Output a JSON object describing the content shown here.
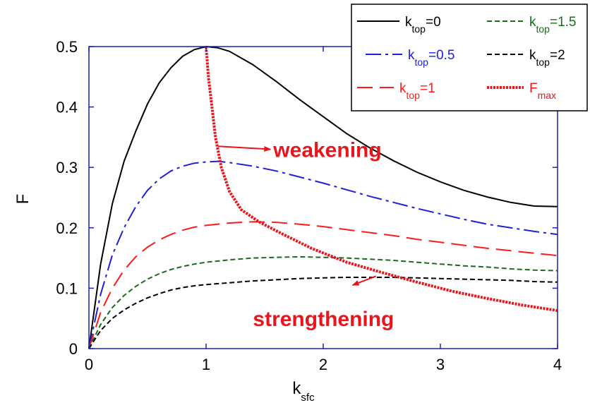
{
  "chart_data": {
    "type": "line",
    "xlabel": "k",
    "xlabel_sub": "sfc",
    "ylabel": "F",
    "xlim": [
      0,
      4
    ],
    "ylim": [
      0,
      0.5
    ],
    "x_ticks": [
      "0",
      "1",
      "2",
      "3",
      "4"
    ],
    "y_ticks": [
      "0",
      "0.1",
      "0.2",
      "0.3",
      "0.4",
      "0.5"
    ],
    "grid": false,
    "legend_position": "top-right",
    "series": [
      {
        "name": "k",
        "name_sub": "top",
        "name_suffix": "=0",
        "color": "#000000",
        "dash": "solid",
        "width": 2,
        "points": [
          [
            0,
            0
          ],
          [
            0.1,
            0.14
          ],
          [
            0.2,
            0.24
          ],
          [
            0.3,
            0.31
          ],
          [
            0.4,
            0.36
          ],
          [
            0.5,
            0.405
          ],
          [
            0.6,
            0.44
          ],
          [
            0.7,
            0.465
          ],
          [
            0.8,
            0.484
          ],
          [
            0.9,
            0.495
          ],
          [
            1.0,
            0.5
          ],
          [
            1.1,
            0.498
          ],
          [
            1.2,
            0.492
          ],
          [
            1.4,
            0.47
          ],
          [
            1.6,
            0.442
          ],
          [
            1.8,
            0.412
          ],
          [
            2.0,
            0.384
          ],
          [
            2.2,
            0.356
          ],
          [
            2.4,
            0.332
          ],
          [
            2.6,
            0.311
          ],
          [
            2.8,
            0.292
          ],
          [
            3.0,
            0.276
          ],
          [
            3.2,
            0.262
          ],
          [
            3.4,
            0.251
          ],
          [
            3.6,
            0.242
          ],
          [
            3.8,
            0.236
          ],
          [
            4.0,
            0.235
          ]
        ]
      },
      {
        "name": "k",
        "name_sub": "top",
        "name_suffix": "=0.5",
        "color": "#1f1fd6",
        "dash": "long-dash-dot",
        "width": 2,
        "points": [
          [
            0,
            0
          ],
          [
            0.1,
            0.09
          ],
          [
            0.2,
            0.155
          ],
          [
            0.3,
            0.2
          ],
          [
            0.4,
            0.235
          ],
          [
            0.5,
            0.262
          ],
          [
            0.6,
            0.281
          ],
          [
            0.7,
            0.294
          ],
          [
            0.8,
            0.302
          ],
          [
            0.9,
            0.307
          ],
          [
            1.0,
            0.309
          ],
          [
            1.1,
            0.31
          ],
          [
            1.2,
            0.308
          ],
          [
            1.4,
            0.302
          ],
          [
            1.6,
            0.294
          ],
          [
            1.8,
            0.284
          ],
          [
            2.0,
            0.274
          ],
          [
            2.2,
            0.263
          ],
          [
            2.4,
            0.252
          ],
          [
            2.6,
            0.242
          ],
          [
            2.8,
            0.232
          ],
          [
            3.0,
            0.223
          ],
          [
            3.2,
            0.214
          ],
          [
            3.4,
            0.206
          ],
          [
            3.6,
            0.2
          ],
          [
            3.8,
            0.194
          ],
          [
            4.0,
            0.189
          ]
        ]
      },
      {
        "name": "k",
        "name_sub": "top",
        "name_suffix": "=1",
        "color": "#ff1a1a",
        "dash": "long-dash",
        "width": 2,
        "points": [
          [
            0,
            0
          ],
          [
            0.1,
            0.06
          ],
          [
            0.2,
            0.1
          ],
          [
            0.3,
            0.13
          ],
          [
            0.4,
            0.152
          ],
          [
            0.5,
            0.168
          ],
          [
            0.6,
            0.18
          ],
          [
            0.7,
            0.189
          ],
          [
            0.8,
            0.196
          ],
          [
            0.9,
            0.201
          ],
          [
            1.0,
            0.204
          ],
          [
            1.2,
            0.208
          ],
          [
            1.4,
            0.21
          ],
          [
            1.6,
            0.209
          ],
          [
            1.8,
            0.206
          ],
          [
            2.0,
            0.202
          ],
          [
            2.2,
            0.197
          ],
          [
            2.4,
            0.192
          ],
          [
            2.6,
            0.187
          ],
          [
            2.8,
            0.181
          ],
          [
            3.0,
            0.176
          ],
          [
            3.2,
            0.171
          ],
          [
            3.4,
            0.166
          ],
          [
            3.6,
            0.162
          ],
          [
            3.8,
            0.158
          ],
          [
            4.0,
            0.154
          ]
        ]
      },
      {
        "name": "k",
        "name_sub": "top",
        "name_suffix": "=1.5",
        "color": "#1a6b1a",
        "dash": "short-dash",
        "width": 2,
        "points": [
          [
            0,
            0
          ],
          [
            0.1,
            0.04
          ],
          [
            0.2,
            0.068
          ],
          [
            0.3,
            0.088
          ],
          [
            0.4,
            0.103
          ],
          [
            0.5,
            0.115
          ],
          [
            0.6,
            0.124
          ],
          [
            0.7,
            0.131
          ],
          [
            0.8,
            0.136
          ],
          [
            0.9,
            0.14
          ],
          [
            1.0,
            0.143
          ],
          [
            1.2,
            0.147
          ],
          [
            1.4,
            0.15
          ],
          [
            1.6,
            0.151
          ],
          [
            1.8,
            0.152
          ],
          [
            2.0,
            0.151
          ],
          [
            2.2,
            0.15
          ],
          [
            2.4,
            0.148
          ],
          [
            2.6,
            0.146
          ],
          [
            2.8,
            0.143
          ],
          [
            3.0,
            0.14
          ],
          [
            3.2,
            0.137
          ],
          [
            3.4,
            0.135
          ],
          [
            3.6,
            0.132
          ],
          [
            3.8,
            0.13
          ],
          [
            4.0,
            0.129
          ]
        ]
      },
      {
        "name": "k",
        "name_sub": "top",
        "name_suffix": "=2",
        "color": "#000000",
        "dash": "short-dash",
        "width": 2,
        "points": [
          [
            0,
            0
          ],
          [
            0.1,
            0.03
          ],
          [
            0.2,
            0.05
          ],
          [
            0.3,
            0.064
          ],
          [
            0.4,
            0.075
          ],
          [
            0.5,
            0.084
          ],
          [
            0.6,
            0.091
          ],
          [
            0.7,
            0.097
          ],
          [
            0.8,
            0.101
          ],
          [
            0.9,
            0.104
          ],
          [
            1.0,
            0.106
          ],
          [
            1.2,
            0.109
          ],
          [
            1.4,
            0.112
          ],
          [
            1.6,
            0.114
          ],
          [
            1.8,
            0.116
          ],
          [
            2.0,
            0.117
          ],
          [
            2.2,
            0.118
          ],
          [
            2.4,
            0.118
          ],
          [
            2.6,
            0.118
          ],
          [
            2.8,
            0.117
          ],
          [
            3.0,
            0.116
          ],
          [
            3.2,
            0.115
          ],
          [
            3.4,
            0.114
          ],
          [
            3.6,
            0.113
          ],
          [
            3.8,
            0.111
          ],
          [
            4.0,
            0.11
          ]
        ]
      },
      {
        "name": "F",
        "name_sub": "max",
        "name_suffix": "",
        "color": "#e8161c",
        "dash": "dotted-thick",
        "width": 4,
        "points": [
          [
            1.0,
            0.5
          ],
          [
            1.02,
            0.45
          ],
          [
            1.05,
            0.4
          ],
          [
            1.08,
            0.35
          ],
          [
            1.13,
            0.3
          ],
          [
            1.2,
            0.26
          ],
          [
            1.3,
            0.23
          ],
          [
            1.45,
            0.21
          ],
          [
            1.65,
            0.19
          ],
          [
            1.9,
            0.166
          ],
          [
            2.2,
            0.143
          ],
          [
            2.5,
            0.126
          ],
          [
            2.8,
            0.11
          ],
          [
            3.1,
            0.095
          ],
          [
            3.4,
            0.083
          ],
          [
            3.7,
            0.072
          ],
          [
            4.0,
            0.063
          ]
        ]
      }
    ],
    "annotations": [
      {
        "text": "weakening",
        "x": 1.55,
        "y": 0.33,
        "arrow_from": [
          1.1,
          0.335
        ],
        "arrow_to": [
          1.55,
          0.33
        ]
      },
      {
        "text": "strengthening",
        "x": 1.4,
        "y": 0.05,
        "arrow_from": [
          2.45,
          0.12
        ],
        "arrow_to": [
          2.25,
          0.105
        ]
      }
    ]
  }
}
